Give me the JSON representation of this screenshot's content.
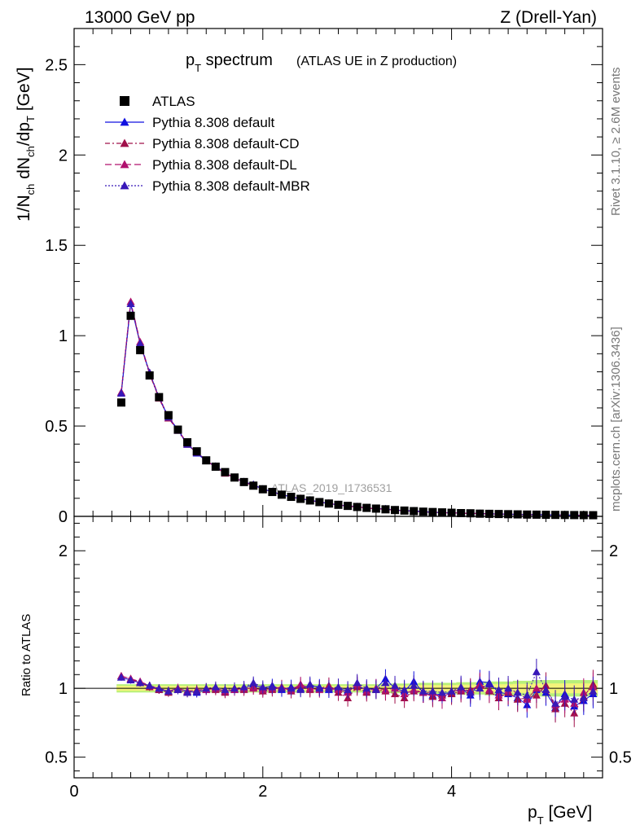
{
  "header": {
    "left": "13000 GeV pp",
    "right": "Z (Drell-Yan)"
  },
  "side": {
    "rivet": "Rivet 3.1.10, ≥ 2.6M events",
    "mcplots": "mcplots.cern.ch [arXiv:1306.3436]"
  },
  "chart_data": {
    "type": "scatter",
    "title_main": "p",
    "title_sub": "T",
    "title_rest": " spectrum",
    "title_extra": "(ATLAS UE in Z production)",
    "ylabel_parts": [
      "1/N",
      "ch",
      " dN",
      "ch",
      "/dp",
      "T",
      " [GeV]"
    ],
    "xlabel_main": "p",
    "xlabel_sub": "T",
    "xlabel_rest": " [GeV]",
    "ratio_ylabel": "Ratio to ATLAS",
    "watermark": "ATLAS_2019_I1736531",
    "xlim": [
      0,
      5.6
    ],
    "ylim": [
      0,
      2.7
    ],
    "ratio_ylim": [
      0.35,
      2.25
    ],
    "xticks": [
      "0",
      "2",
      "4"
    ],
    "yticks": [
      "0",
      "0.5",
      "1",
      "1.5",
      "2",
      "2.5"
    ],
    "ratio_yticks": [
      "0.5",
      "1",
      "2"
    ],
    "legend": [
      {
        "label": "ATLAS",
        "color": "#000000",
        "marker": "square",
        "dash": ""
      },
      {
        "label": "Pythia 8.308 default",
        "color": "#1010e0",
        "marker": "triangle",
        "dash": ""
      },
      {
        "label": "Pythia 8.308 default-CD",
        "color": "#a0104a",
        "marker": "triangle",
        "dash": "6,3,2,3"
      },
      {
        "label": "Pythia 8.308 default-DL",
        "color": "#b0106e",
        "marker": "triangle",
        "dash": "8,4"
      },
      {
        "label": "Pythia 8.308 default-MBR",
        "color": "#3818b8",
        "marker": "triangle",
        "dash": "2,2"
      }
    ],
    "x": [
      0.5,
      0.6,
      0.7,
      0.8,
      0.9,
      1.0,
      1.1,
      1.2,
      1.3,
      1.4,
      1.5,
      1.6,
      1.7,
      1.8,
      1.9,
      2.0,
      2.1,
      2.2,
      2.3,
      2.4,
      2.5,
      2.6,
      2.7,
      2.8,
      2.9,
      3.0,
      3.1,
      3.2,
      3.3,
      3.4,
      3.5,
      3.6,
      3.7,
      3.8,
      3.9,
      4.0,
      4.1,
      4.2,
      4.3,
      4.4,
      4.5,
      4.6,
      4.7,
      4.8,
      4.9,
      5.0,
      5.1,
      5.2,
      5.3,
      5.4,
      5.5
    ],
    "data_values": [
      0.63,
      1.11,
      0.92,
      0.78,
      0.66,
      0.56,
      0.48,
      0.41,
      0.36,
      0.31,
      0.275,
      0.245,
      0.215,
      0.19,
      0.17,
      0.15,
      0.135,
      0.12,
      0.108,
      0.097,
      0.088,
      0.079,
      0.071,
      0.064,
      0.058,
      0.052,
      0.047,
      0.043,
      0.039,
      0.035,
      0.032,
      0.029,
      0.026,
      0.024,
      0.022,
      0.02,
      0.018,
      0.017,
      0.015,
      0.014,
      0.013,
      0.012,
      0.011,
      0.01,
      0.0095,
      0.0088,
      0.0082,
      0.0077,
      0.0072,
      0.0068,
      0.0064
    ],
    "band_rel_error": [
      0.03,
      0.03,
      0.03,
      0.03,
      0.03,
      0.03,
      0.03,
      0.03,
      0.03,
      0.03,
      0.03,
      0.03,
      0.03,
      0.03,
      0.03,
      0.03,
      0.03,
      0.03,
      0.03,
      0.03,
      0.03,
      0.03,
      0.03,
      0.03,
      0.03,
      0.03,
      0.03,
      0.03,
      0.035,
      0.035,
      0.035,
      0.035,
      0.04,
      0.04,
      0.04,
      0.04,
      0.045,
      0.045,
      0.045,
      0.05,
      0.05,
      0.05,
      0.055,
      0.055,
      0.06,
      0.06,
      0.06,
      0.06,
      0.06,
      0.06,
      0.06
    ],
    "series": [
      {
        "name": "Pythia 8.308 default",
        "ratio": [
          1.08,
          1.06,
          1.04,
          1.02,
          0.99,
          0.98,
          1.0,
          0.98,
          0.97,
          0.99,
          1.0,
          0.98,
          0.99,
          1.0,
          1.03,
          1.0,
          1.02,
          0.99,
          1.01,
          1.0,
          1.02,
          1.01,
          0.99,
          1.0,
          0.98,
          1.02,
          0.99,
          1.0,
          1.07,
          1.0,
          0.98,
          1.05,
          0.97,
          0.95,
          0.96,
          0.97,
          1.0,
          0.95,
          1.05,
          1.04,
          0.97,
          0.96,
          0.93,
          0.88,
          0.99,
          0.97,
          0.86,
          0.96,
          0.87,
          0.91,
          0.96
        ]
      },
      {
        "name": "Pythia 8.308 default-CD",
        "ratio": [
          1.09,
          1.07,
          1.04,
          1.01,
          0.99,
          0.97,
          0.99,
          0.97,
          0.98,
          1.0,
          0.99,
          0.97,
          1.0,
          0.99,
          1.01,
          0.98,
          0.99,
          1.01,
          0.98,
          1.02,
          0.99,
          1.0,
          1.02,
          0.97,
          0.93,
          1.01,
          0.97,
          0.99,
          0.98,
          0.96,
          0.93,
          0.98,
          0.97,
          0.94,
          0.95,
          0.96,
          0.98,
          0.99,
          1.02,
          0.98,
          0.93,
          0.97,
          0.92,
          0.93,
          0.95,
          1.02,
          0.85,
          0.89,
          0.82,
          0.94,
          1.03
        ]
      },
      {
        "name": "Pythia 8.308 default-DL",
        "ratio": [
          1.09,
          1.07,
          1.05,
          1.02,
          1.0,
          0.98,
          1.0,
          0.98,
          0.99,
          0.99,
          1.0,
          0.98,
          0.99,
          1.0,
          1.0,
          0.99,
          1.0,
          1.01,
          0.99,
          1.03,
          1.0,
          0.99,
          1.01,
          0.99,
          0.97,
          1.03,
          0.98,
          1.0,
          0.99,
          1.0,
          0.96,
          0.99,
          0.97,
          0.97,
          0.93,
          0.98,
          0.99,
          0.98,
          1.03,
          0.99,
          0.95,
          0.98,
          0.97,
          0.92,
          1.0,
          0.99,
          0.88,
          0.92,
          0.89,
          0.97,
          1.01
        ]
      },
      {
        "name": "Pythia 8.308 default-MBR",
        "ratio": [
          1.08,
          1.06,
          1.04,
          1.02,
          1.0,
          0.98,
          0.99,
          0.97,
          0.98,
          1.0,
          1.01,
          0.99,
          1.0,
          1.01,
          1.04,
          1.01,
          1.01,
          1.0,
          1.0,
          0.99,
          1.03,
          1.0,
          1.0,
          1.01,
          0.99,
          1.04,
          1.0,
          0.99,
          1.04,
          1.02,
          0.99,
          1.02,
          0.98,
          0.98,
          0.97,
          0.98,
          1.01,
          0.97,
          1.0,
          1.03,
          0.99,
          1.0,
          0.97,
          0.95,
          1.12,
          0.99,
          0.89,
          0.94,
          0.92,
          0.93,
          0.98
        ]
      }
    ]
  }
}
